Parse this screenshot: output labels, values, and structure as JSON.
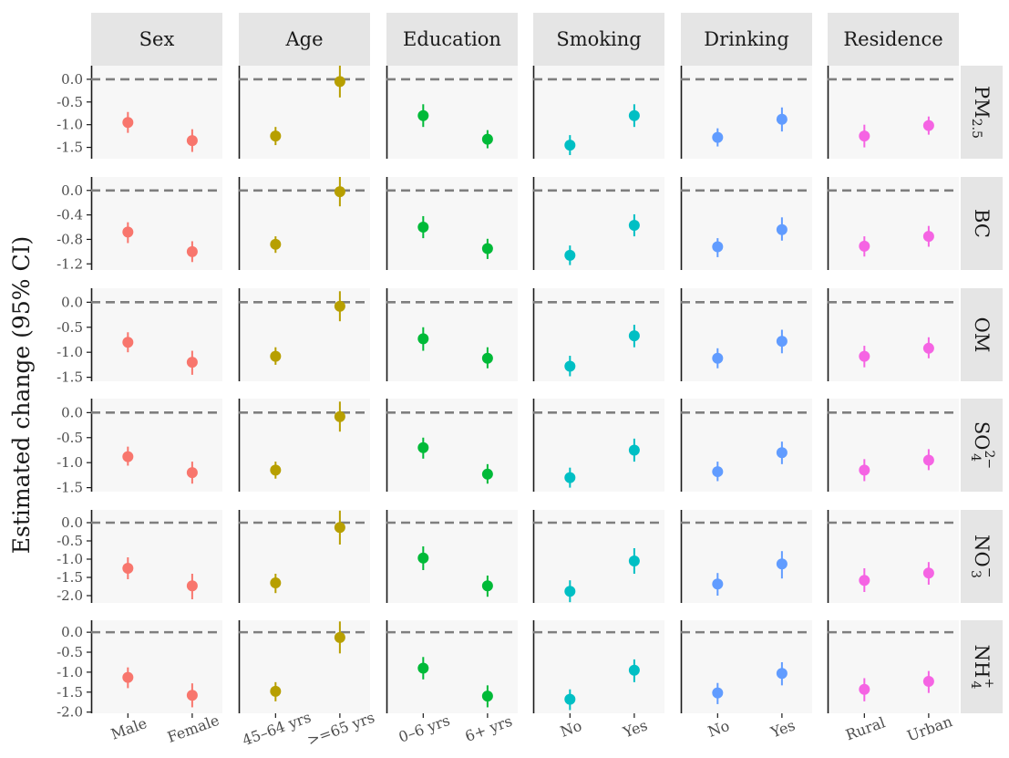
{
  "chart_data": {
    "type": "scatter",
    "subtype": "faceted point-range (estimate with 95% CI)",
    "ylabel": "Estimated change (95% CI)",
    "reference_line": 0,
    "columns": [
      {
        "name": "Sex",
        "levels": [
          "Male",
          "Female"
        ],
        "color": "#F8766D"
      },
      {
        "name": "Age",
        "levels": [
          "45–64 yrs",
          ">=65 yrs"
        ],
        "color": "#B79F00"
      },
      {
        "name": "Education",
        "levels": [
          "0–6 yrs",
          "6+ yrs"
        ],
        "color": "#00BA38"
      },
      {
        "name": "Smoking",
        "levels": [
          "No",
          "Yes"
        ],
        "color": "#00BFC4"
      },
      {
        "name": "Drinking",
        "levels": [
          "No",
          "Yes"
        ],
        "color": "#619CFF"
      },
      {
        "name": "Residence",
        "levels": [
          "Rural",
          "Urban"
        ],
        "color": "#F564E3"
      }
    ],
    "rows": [
      {
        "pollutant": {
          "base": "PM",
          "sub": "2.5",
          "sup": ""
        },
        "ylim": [
          -1.75,
          0.3
        ],
        "yticks": [
          0.0,
          -0.5,
          -1.0,
          -1.5
        ],
        "ytick_labels": [
          "0.0",
          "-0.5",
          "-1.0",
          "-1.5"
        ],
        "points": [
          [
            {
              "est": -0.95,
              "lo": -1.18,
              "hi": -0.72
            },
            {
              "est": -1.35,
              "lo": -1.6,
              "hi": -1.1
            }
          ],
          [
            {
              "est": -1.25,
              "lo": -1.45,
              "hi": -1.05
            },
            {
              "est": -0.05,
              "lo": -0.4,
              "hi": 0.3
            }
          ],
          [
            {
              "est": -0.8,
              "lo": -1.05,
              "hi": -0.55
            },
            {
              "est": -1.32,
              "lo": -1.52,
              "hi": -1.12
            }
          ],
          [
            {
              "est": -1.45,
              "lo": -1.67,
              "hi": -1.23
            },
            {
              "est": -0.8,
              "lo": -1.05,
              "hi": -0.55
            }
          ],
          [
            {
              "est": -1.28,
              "lo": -1.48,
              "hi": -1.08
            },
            {
              "est": -0.88,
              "lo": -1.15,
              "hi": -0.62
            }
          ],
          [
            {
              "est": -1.25,
              "lo": -1.5,
              "hi": -1.0
            },
            {
              "est": -1.02,
              "lo": -1.22,
              "hi": -0.82
            }
          ]
        ]
      },
      {
        "pollutant": {
          "base": "BC",
          "sub": "",
          "sup": ""
        },
        "ylim": [
          -1.3,
          0.22
        ],
        "yticks": [
          0.0,
          -0.4,
          -0.8,
          -1.2
        ],
        "ytick_labels": [
          "0.0",
          "-0.4",
          "-0.8",
          "-1.2"
        ],
        "points": [
          [
            {
              "est": -0.68,
              "lo": -0.86,
              "hi": -0.52
            },
            {
              "est": -1.0,
              "lo": -1.17,
              "hi": -0.83
            }
          ],
          [
            {
              "est": -0.88,
              "lo": -1.02,
              "hi": -0.75
            },
            {
              "est": -0.02,
              "lo": -0.26,
              "hi": 0.22
            }
          ],
          [
            {
              "est": -0.6,
              "lo": -0.78,
              "hi": -0.42
            },
            {
              "est": -0.95,
              "lo": -1.12,
              "hi": -0.79
            }
          ],
          [
            {
              "est": -1.06,
              "lo": -1.22,
              "hi": -0.9
            },
            {
              "est": -0.57,
              "lo": -0.75,
              "hi": -0.39
            }
          ],
          [
            {
              "est": -0.92,
              "lo": -1.09,
              "hi": -0.78
            },
            {
              "est": -0.64,
              "lo": -0.82,
              "hi": -0.44
            }
          ],
          [
            {
              "est": -0.91,
              "lo": -1.08,
              "hi": -0.75
            },
            {
              "est": -0.75,
              "lo": -0.92,
              "hi": -0.58
            }
          ]
        ]
      },
      {
        "pollutant": {
          "base": "OM",
          "sub": "",
          "sup": ""
        },
        "ylim": [
          -1.58,
          0.28
        ],
        "yticks": [
          0.0,
          -0.5,
          -1.0,
          -1.5
        ],
        "ytick_labels": [
          "0.0",
          "-0.5",
          "-1.0",
          "-1.5"
        ],
        "points": [
          [
            {
              "est": -0.8,
              "lo": -1.0,
              "hi": -0.6
            },
            {
              "est": -1.2,
              "lo": -1.45,
              "hi": -0.97
            }
          ],
          [
            {
              "est": -1.08,
              "lo": -1.25,
              "hi": -0.9
            },
            {
              "est": -0.08,
              "lo": -0.38,
              "hi": 0.22
            }
          ],
          [
            {
              "est": -0.73,
              "lo": -0.97,
              "hi": -0.5
            },
            {
              "est": -1.12,
              "lo": -1.32,
              "hi": -0.9
            }
          ],
          [
            {
              "est": -1.28,
              "lo": -1.48,
              "hi": -1.07
            },
            {
              "est": -0.67,
              "lo": -0.9,
              "hi": -0.45
            }
          ],
          [
            {
              "est": -1.12,
              "lo": -1.32,
              "hi": -0.92
            },
            {
              "est": -0.78,
              "lo": -1.02,
              "hi": -0.55
            }
          ],
          [
            {
              "est": -1.08,
              "lo": -1.3,
              "hi": -0.87
            },
            {
              "est": -0.92,
              "lo": -1.12,
              "hi": -0.7
            }
          ]
        ]
      },
      {
        "pollutant": {
          "base": "SO",
          "sub": "4",
          "sup": "2−"
        },
        "ylim": [
          -1.58,
          0.28
        ],
        "yticks": [
          0.0,
          -0.5,
          -1.0,
          -1.5
        ],
        "ytick_labels": [
          "0.0",
          "-0.5",
          "-1.0",
          "-1.5"
        ],
        "points": [
          [
            {
              "est": -0.88,
              "lo": -1.06,
              "hi": -0.68
            },
            {
              "est": -1.2,
              "lo": -1.42,
              "hi": -0.98
            }
          ],
          [
            {
              "est": -1.15,
              "lo": -1.32,
              "hi": -0.98
            },
            {
              "est": -0.08,
              "lo": -0.38,
              "hi": 0.22
            }
          ],
          [
            {
              "est": -0.7,
              "lo": -0.92,
              "hi": -0.5
            },
            {
              "est": -1.23,
              "lo": -1.42,
              "hi": -1.03
            }
          ],
          [
            {
              "est": -1.3,
              "lo": -1.5,
              "hi": -1.1
            },
            {
              "est": -0.75,
              "lo": -0.98,
              "hi": -0.52
            }
          ],
          [
            {
              "est": -1.18,
              "lo": -1.37,
              "hi": -0.98
            },
            {
              "est": -0.8,
              "lo": -1.03,
              "hi": -0.58
            }
          ],
          [
            {
              "est": -1.15,
              "lo": -1.37,
              "hi": -0.93
            },
            {
              "est": -0.95,
              "lo": -1.15,
              "hi": -0.73
            }
          ]
        ]
      },
      {
        "pollutant": {
          "base": "NO",
          "sub": "3",
          "sup": "−"
        },
        "ylim": [
          -2.2,
          0.35
        ],
        "yticks": [
          0.0,
          -0.5,
          -1.0,
          -1.5,
          -2.0
        ],
        "ytick_labels": [
          "0.0",
          "-0.5",
          "-1.0",
          "-1.5",
          "-2.0"
        ],
        "points": [
          [
            {
              "est": -1.25,
              "lo": -1.55,
              "hi": -0.95
            },
            {
              "est": -1.73,
              "lo": -2.1,
              "hi": -1.4
            }
          ],
          [
            {
              "est": -1.65,
              "lo": -1.93,
              "hi": -1.4
            },
            {
              "est": -0.13,
              "lo": -0.6,
              "hi": 0.33
            }
          ],
          [
            {
              "est": -0.97,
              "lo": -1.3,
              "hi": -0.65
            },
            {
              "est": -1.73,
              "lo": -2.03,
              "hi": -1.45
            }
          ],
          [
            {
              "est": -1.88,
              "lo": -2.18,
              "hi": -1.58
            },
            {
              "est": -1.05,
              "lo": -1.4,
              "hi": -0.7
            }
          ],
          [
            {
              "est": -1.68,
              "lo": -2.0,
              "hi": -1.38
            },
            {
              "est": -1.13,
              "lo": -1.53,
              "hi": -0.78
            }
          ],
          [
            {
              "est": -1.58,
              "lo": -1.9,
              "hi": -1.25
            },
            {
              "est": -1.38,
              "lo": -1.7,
              "hi": -1.08
            }
          ]
        ]
      },
      {
        "pollutant": {
          "base": "NH",
          "sub": "4",
          "sup": "+"
        },
        "ylim": [
          -2.03,
          0.3
        ],
        "yticks": [
          0.0,
          -0.5,
          -1.0,
          -1.5,
          -2.0
        ],
        "ytick_labels": [
          "0.0",
          "-0.5",
          "-1.0",
          "-1.5",
          "-2.0"
        ],
        "points": [
          [
            {
              "est": -1.13,
              "lo": -1.4,
              "hi": -0.88
            },
            {
              "est": -1.58,
              "lo": -1.88,
              "hi": -1.28
            }
          ],
          [
            {
              "est": -1.48,
              "lo": -1.73,
              "hi": -1.25
            },
            {
              "est": -0.13,
              "lo": -0.53,
              "hi": 0.27
            }
          ],
          [
            {
              "est": -0.9,
              "lo": -1.18,
              "hi": -0.62
            },
            {
              "est": -1.6,
              "lo": -1.88,
              "hi": -1.33
            }
          ],
          [
            {
              "est": -1.68,
              "lo": -1.95,
              "hi": -1.43
            },
            {
              "est": -0.95,
              "lo": -1.25,
              "hi": -0.68
            }
          ],
          [
            {
              "est": -1.52,
              "lo": -1.8,
              "hi": -1.27
            },
            {
              "est": -1.03,
              "lo": -1.33,
              "hi": -0.75
            }
          ],
          [
            {
              "est": -1.43,
              "lo": -1.73,
              "hi": -1.15
            },
            {
              "est": -1.23,
              "lo": -1.52,
              "hi": -0.97
            }
          ]
        ]
      }
    ],
    "grid": false,
    "panel_background": "#f7f7f7",
    "strip_background": "#e5e5e5",
    "legend": "none"
  }
}
